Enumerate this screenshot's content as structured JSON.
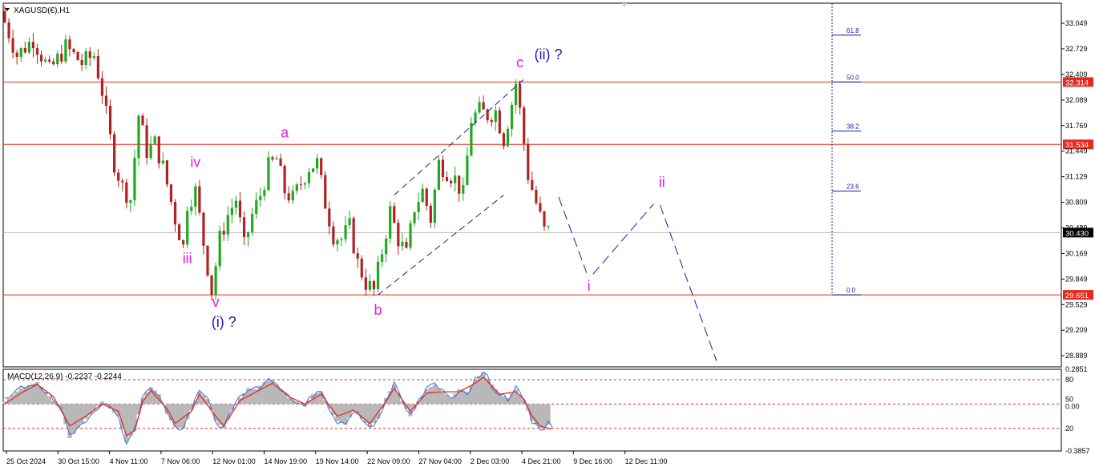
{
  "symbol_label": "XAGUSD(€),H1",
  "chart_data": [
    {
      "type": "candlestick",
      "title": "XAGUSD(€),H1",
      "ylim": [
        28.75,
        33.3
      ],
      "price_ticks": [
        "33.049",
        "32.729",
        "32.409",
        "32.089",
        "31.769",
        "31.449",
        "31.129",
        "30.809",
        "30.489",
        "30.169",
        "29.849",
        "29.529",
        "29.209",
        "28.889"
      ],
      "x_ticks": [
        "25 Oct 2024",
        "30 Oct 15:00",
        "4 Nov 11:00",
        "7 Nov 06:00",
        "12 Nov 01:00",
        "14 Nov 19:00",
        "19 Nov 14:00",
        "22 Nov 09:00",
        "27 Nov 04:00",
        "2 Dec 03:00",
        "4 Dec 21:00",
        "9 Dec 16:00",
        "12 Dec 11:00"
      ],
      "price_series": [
        [
          0,
          33.2
        ],
        [
          4,
          32.65
        ],
        [
          8,
          32.85
        ],
        [
          12,
          32.45
        ],
        [
          16,
          32.75
        ],
        [
          20,
          32.55
        ],
        [
          23,
          32.65
        ],
        [
          25,
          32.2
        ],
        [
          28,
          31.3
        ],
        [
          30,
          31.0
        ],
        [
          32,
          30.85
        ],
        [
          34,
          31.9
        ],
        [
          36,
          31.45
        ],
        [
          38,
          31.55
        ],
        [
          40,
          31.25
        ],
        [
          43,
          30.6
        ],
        [
          45,
          30.25
        ],
        [
          46,
          30.8
        ],
        [
          48,
          30.95
        ],
        [
          50,
          30.3
        ],
        [
          52,
          29.7
        ],
        [
          54,
          30.35
        ],
        [
          56,
          30.65
        ],
        [
          58,
          30.85
        ],
        [
          60,
          30.25
        ],
        [
          62,
          30.65
        ],
        [
          64,
          30.9
        ],
        [
          66,
          31.25
        ],
        [
          68,
          31.35
        ],
        [
          70,
          30.95
        ],
        [
          72,
          30.85
        ],
        [
          74,
          31.05
        ],
        [
          76,
          31.25
        ],
        [
          78,
          31.3
        ],
        [
          80,
          30.8
        ],
        [
          82,
          30.4
        ],
        [
          84,
          30.35
        ],
        [
          86,
          30.5
        ],
        [
          88,
          30.05
        ],
        [
          90,
          29.8
        ],
        [
          92,
          29.7
        ],
        [
          94,
          30.2
        ],
        [
          96,
          30.7
        ],
        [
          98,
          30.35
        ],
        [
          100,
          30.15
        ],
        [
          102,
          30.75
        ],
        [
          104,
          30.95
        ],
        [
          106,
          30.6
        ],
        [
          108,
          31.3
        ],
        [
          110,
          31.2
        ],
        [
          112,
          31.1
        ],
        [
          114,
          30.9
        ],
        [
          116,
          31.85
        ],
        [
          118,
          31.95
        ],
        [
          120,
          31.9
        ],
        [
          122,
          31.95
        ],
        [
          124,
          31.6
        ],
        [
          126,
          32.05
        ],
        [
          127,
          32.3
        ],
        [
          128,
          31.95
        ],
        [
          130,
          31.15
        ],
        [
          132,
          30.8
        ],
        [
          134,
          30.45
        ]
      ],
      "candles_drawn": 135,
      "price_levels": [
        {
          "label": "32.314",
          "value": 32.314,
          "color": "#e8281e"
        },
        {
          "label": "31.534",
          "value": 31.534,
          "color": "#e8281e"
        },
        {
          "label": "30.430",
          "value": 30.43,
          "color": "#b8b8b8"
        },
        {
          "label": "29.651",
          "value": 29.651,
          "color": "#e8281e"
        }
      ],
      "fib_levels": [
        {
          "label": "61.8",
          "value": 32.9
        },
        {
          "label": "50.0",
          "value": 32.314
        },
        {
          "label": "38.2",
          "value": 31.7
        },
        {
          "label": "23.6",
          "value": 30.95
        },
        {
          "label": "0.0",
          "value": 29.651
        }
      ],
      "wave_labels": [
        {
          "text": "iv",
          "color": "#e020e0",
          "bar": 47,
          "value": 31.25
        },
        {
          "text": "iii",
          "color": "#e020e0",
          "bar": 45,
          "value": 30.05
        },
        {
          "text": "v",
          "color": "#e020e0",
          "bar": 52,
          "value": 29.5
        },
        {
          "text": "(i) ?",
          "color": "#1a1aa8",
          "bar": 54,
          "value": 29.25
        },
        {
          "text": "a",
          "color": "#e020e0",
          "bar": 69,
          "value": 31.62
        },
        {
          "text": "b",
          "color": "#e020e0",
          "bar": 92,
          "value": 29.4
        },
        {
          "text": "c",
          "color": "#e020e0",
          "bar": 127,
          "value": 32.5
        },
        {
          "text": "(ii) ?",
          "color": "#1a1aa8",
          "bar": 134,
          "value": 32.6
        },
        {
          "text": "i",
          "color": "#e020e0",
          "bar": 144,
          "value": 29.7
        },
        {
          "text": "ii",
          "color": "#e020e0",
          "bar": 162,
          "value": 31.0
        }
      ],
      "channel_upper": [
        [
          96,
          30.9
        ],
        [
          128,
          32.35
        ]
      ],
      "channel_lower": [
        [
          92,
          29.65
        ],
        [
          123,
          30.9
        ]
      ],
      "projection_path": [
        [
          136,
          30.95
        ],
        [
          144,
          29.85
        ],
        [
          161,
          30.85
        ],
        [
          176,
          28.75
        ]
      ]
    },
    {
      "type": "macd",
      "title": "MACD(12,26,9) -0.2237 -0.2244",
      "ticks": [
        "0.2851",
        "80",
        "50",
        "0.00",
        "20",
        "-0.3857"
      ],
      "levels": [
        {
          "label": "80",
          "value": 0.2
        },
        {
          "label": "50",
          "value": 0.0
        },
        {
          "label": "20",
          "value": -0.2
        }
      ],
      "ylim": [
        -0.3857,
        0.2851
      ],
      "histogram": [
        [
          0,
          0.02
        ],
        [
          4,
          0.13
        ],
        [
          8,
          0.18
        ],
        [
          10,
          0.1
        ],
        [
          14,
          -0.05
        ],
        [
          16,
          -0.28
        ],
        [
          20,
          -0.12
        ],
        [
          24,
          0.02
        ],
        [
          28,
          -0.1
        ],
        [
          30,
          -0.31
        ],
        [
          32,
          -0.22
        ],
        [
          34,
          0.05
        ],
        [
          36,
          0.14
        ],
        [
          38,
          0.08
        ],
        [
          40,
          -0.08
        ],
        [
          42,
          -0.19
        ],
        [
          44,
          -0.2
        ],
        [
          46,
          -0.05
        ],
        [
          48,
          0.1
        ],
        [
          50,
          0.04
        ],
        [
          52,
          -0.14
        ],
        [
          54,
          -0.2
        ],
        [
          56,
          -0.05
        ],
        [
          58,
          0.05
        ],
        [
          60,
          0.13
        ],
        [
          62,
          0.12
        ],
        [
          64,
          0.18
        ],
        [
          66,
          0.2
        ],
        [
          68,
          0.12
        ],
        [
          70,
          0.05
        ],
        [
          72,
          0.02
        ],
        [
          74,
          -0.02
        ],
        [
          76,
          0.08
        ],
        [
          78,
          0.1
        ],
        [
          80,
          -0.04
        ],
        [
          82,
          -0.14
        ],
        [
          84,
          -0.17
        ],
        [
          86,
          -0.05
        ],
        [
          88,
          -0.12
        ],
        [
          90,
          -0.19
        ],
        [
          92,
          -0.12
        ],
        [
          94,
          0.05
        ],
        [
          96,
          0.16
        ],
        [
          98,
          0.02
        ],
        [
          100,
          -0.1
        ],
        [
          102,
          0.02
        ],
        [
          104,
          0.12
        ],
        [
          106,
          0.16
        ],
        [
          108,
          0.1
        ],
        [
          110,
          0.05
        ],
        [
          112,
          0.12
        ],
        [
          114,
          0.1
        ],
        [
          116,
          0.2
        ],
        [
          118,
          0.26
        ],
        [
          120,
          0.16
        ],
        [
          122,
          0.08
        ],
        [
          124,
          0.05
        ],
        [
          126,
          0.12
        ],
        [
          128,
          0.03
        ],
        [
          130,
          -0.14
        ],
        [
          132,
          -0.2
        ],
        [
          134,
          -0.17
        ]
      ],
      "signal": [
        [
          0,
          0.0
        ],
        [
          4,
          0.09
        ],
        [
          8,
          0.16
        ],
        [
          12,
          0.06
        ],
        [
          16,
          -0.18
        ],
        [
          20,
          -0.1
        ],
        [
          24,
          0.0
        ],
        [
          28,
          -0.06
        ],
        [
          30,
          -0.26
        ],
        [
          32,
          -0.22
        ],
        [
          34,
          0.02
        ],
        [
          36,
          0.11
        ],
        [
          40,
          -0.04
        ],
        [
          42,
          -0.16
        ],
        [
          46,
          -0.06
        ],
        [
          48,
          0.08
        ],
        [
          52,
          -0.1
        ],
        [
          54,
          -0.18
        ],
        [
          58,
          0.03
        ],
        [
          62,
          0.1
        ],
        [
          66,
          0.17
        ],
        [
          70,
          0.06
        ],
        [
          74,
          0.0
        ],
        [
          78,
          0.08
        ],
        [
          82,
          -0.1
        ],
        [
          86,
          -0.05
        ],
        [
          90,
          -0.16
        ],
        [
          94,
          0.02
        ],
        [
          96,
          0.13
        ],
        [
          100,
          -0.06
        ],
        [
          104,
          0.09
        ],
        [
          108,
          0.1
        ],
        [
          112,
          0.1
        ],
        [
          116,
          0.17
        ],
        [
          118,
          0.22
        ],
        [
          122,
          0.08
        ],
        [
          126,
          0.1
        ],
        [
          128,
          0.04
        ],
        [
          130,
          -0.1
        ],
        [
          132,
          -0.18
        ],
        [
          134,
          -0.2
        ]
      ],
      "macd_color": "#3a6ee8",
      "signal_color": "#e8281e"
    }
  ]
}
